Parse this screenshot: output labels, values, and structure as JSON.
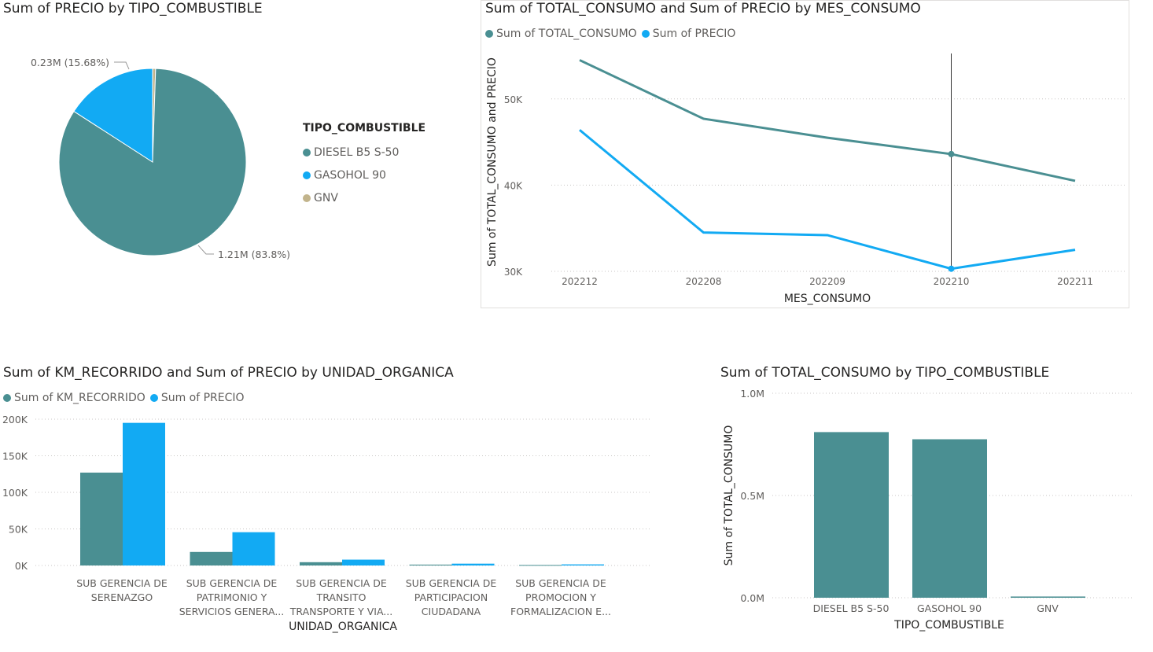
{
  "colors": {
    "teal": "#4a8f92",
    "blue": "#12aaf3",
    "tan": "#c2b48c"
  },
  "pie": {
    "title": "Sum of PRECIO by TIPO_COMBUSTIBLE",
    "legend_title": "TIPO_COMBUSTIBLE",
    "labels": {
      "slice1": "0.23M (15.68%)",
      "slice0": "1.21M (83.8%)"
    }
  },
  "line": {
    "title": "Sum of TOTAL_CONSUMO and Sum of PRECIO by MES_CONSUMO",
    "xlabel": "MES_CONSUMO",
    "ylabel": "Sum of TOTAL_CONSUMO and PRECIO"
  },
  "cluster": {
    "title": "Sum of KM_RECORRIDO and Sum of PRECIO by UNIDAD_ORGANICA",
    "xlabel": "UNIDAD_ORGANICA"
  },
  "bar": {
    "title": "Sum of TOTAL_CONSUMO by TIPO_COMBUSTIBLE",
    "xlabel": "TIPO_COMBUSTIBLE",
    "ylabel": "Sum of TOTAL_CONSUMO"
  },
  "chart_data": [
    {
      "type": "pie",
      "title": "Sum of PRECIO by TIPO_COMBUSTIBLE",
      "legend_title": "TIPO_COMBUSTIBLE",
      "categories": [
        "DIESEL B5 S-50",
        "GASOHOL 90",
        "GNV"
      ],
      "values": [
        1.21,
        0.23,
        0.0075
      ],
      "percent": [
        83.8,
        15.68,
        0.52
      ],
      "data_labels": [
        "1.21M (83.8%)",
        "0.23M (15.68%)",
        ""
      ],
      "legend": "right"
    },
    {
      "type": "line",
      "title": "Sum of TOTAL_CONSUMO and Sum of PRECIO by MES_CONSUMO",
      "x": [
        "202212",
        "202208",
        "202209",
        "202210",
        "202211"
      ],
      "series": [
        {
          "name": "Sum of TOTAL_CONSUMO",
          "values": [
            54500,
            47700,
            45500,
            43600,
            40500
          ]
        },
        {
          "name": "Sum of PRECIO",
          "values": [
            46400,
            34500,
            34200,
            30300,
            32500
          ]
        }
      ],
      "yticks": [
        "30K",
        "40K",
        "50K"
      ],
      "ylim": [
        30000,
        56000
      ],
      "xlabel": "MES_CONSUMO",
      "ylabel": "Sum of TOTAL_CONSUMO and PRECIO",
      "legend": "top-left",
      "grid": true
    },
    {
      "type": "bar",
      "title": "Sum of KM_RECORRIDO and Sum of PRECIO by UNIDAD_ORGANICA",
      "categories": [
        [
          "SUB GERENCIA DE",
          "SERENAZGO"
        ],
        [
          "SUB GERENCIA DE",
          "PATRIMONIO Y",
          "SERVICIOS GENERA..."
        ],
        [
          "SUB GERENCIA DE",
          "TRANSITO",
          "TRANSPORTE Y VIA..."
        ],
        [
          "SUB GERENCIA DE",
          "PARTICIPACION",
          "CIUDADANA"
        ],
        [
          "SUB GERENCIA DE",
          "PROMOCION Y",
          "FORMALIZACION E..."
        ]
      ],
      "series": [
        {
          "name": "Sum of KM_RECORRIDO",
          "values": [
            127000,
            18500,
            4500,
            1200,
            700
          ]
        },
        {
          "name": "Sum of PRECIO",
          "values": [
            195000,
            45500,
            8000,
            2500,
            1500
          ]
        }
      ],
      "yticks": [
        "0K",
        "50K",
        "100K",
        "150K",
        "200K"
      ],
      "ylim": [
        0,
        200000
      ],
      "xlabel": "UNIDAD_ORGANICA",
      "legend": "top-left",
      "grid": true
    },
    {
      "type": "bar",
      "title": "Sum of TOTAL_CONSUMO by TIPO_COMBUSTIBLE",
      "categories": [
        "DIESEL B5 S-50",
        "GASOHOL 90",
        "GNV"
      ],
      "values": [
        810000,
        775000,
        6000
      ],
      "yticks": [
        "0.0M",
        "0.5M",
        "1.0M"
      ],
      "ylim": [
        0,
        1000000
      ],
      "xlabel": "TIPO_COMBUSTIBLE",
      "ylabel": "Sum of TOTAL_CONSUMO",
      "grid": true
    }
  ]
}
